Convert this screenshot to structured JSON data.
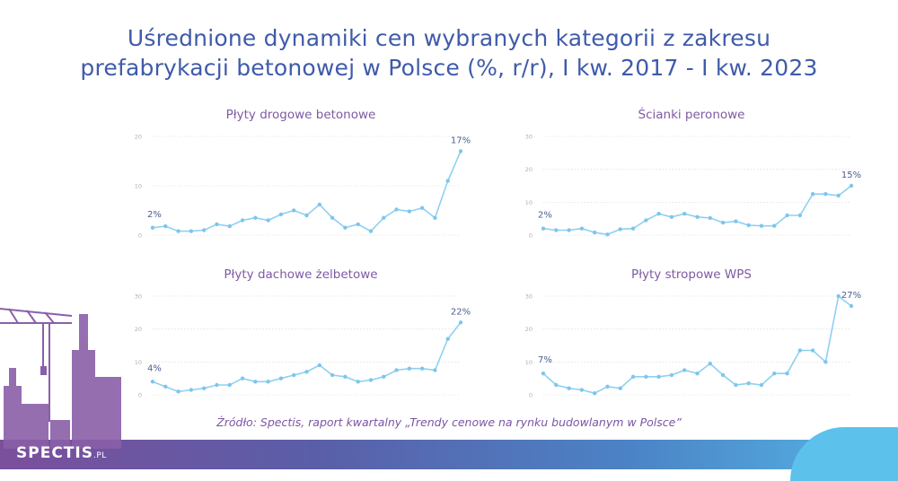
{
  "title": {
    "line1": "Uśrednione dynamiki cen wybranych kategorii z zakresu",
    "line2": "prefabrykacji betonowej w Polsce (%, r/r), I kw. 2017 - I kw. 2023"
  },
  "source": "Źródło: Spectis, raport kwartalny „Trendy cenowe na rynku budowlanym w Polsce”",
  "logo": {
    "main": "SPECTIS",
    "suffix": ".PL"
  },
  "colors": {
    "line": "#8fd0f0",
    "point": "#7cc6ee",
    "label": "#4a5e8f",
    "tick": "#b0b0b0",
    "grid": "#d6d6d6",
    "title": "#3f5ba9",
    "subtitle": "#7f5aa3"
  },
  "chart_data": [
    {
      "type": "line",
      "title": "Płyty drogowe betonowe",
      "ylim": [
        0,
        20
      ],
      "yticks": [
        "0",
        "10",
        "20"
      ],
      "values": [
        1.5,
        1.8,
        0.8,
        0.8,
        1.0,
        2.2,
        1.8,
        3.0,
        3.5,
        3.0,
        4.2,
        5.0,
        4.0,
        6.2,
        3.5,
        1.5,
        2.2,
        0.8,
        3.5,
        5.2,
        4.8,
        5.5,
        3.5,
        11.0,
        17.0
      ],
      "first_label": "2%",
      "last_label": "17%"
    },
    {
      "type": "line",
      "title": "Ścianki peronowe",
      "ylim": [
        0,
        30
      ],
      "yticks": [
        "0",
        "10",
        "20",
        "30"
      ],
      "values": [
        2.0,
        1.5,
        1.5,
        2.0,
        0.8,
        0.2,
        1.8,
        2.0,
        4.5,
        6.5,
        5.5,
        6.5,
        5.5,
        5.2,
        3.8,
        4.2,
        3.0,
        2.8,
        2.8,
        6.0,
        6.0,
        12.5,
        12.5,
        12.0,
        15.0
      ],
      "first_label": "2%",
      "last_label": "15%"
    },
    {
      "type": "line",
      "title": "Płyty dachowe żelbetowe",
      "ylim": [
        0,
        30
      ],
      "yticks": [
        "0",
        "10",
        "20",
        "30"
      ],
      "values": [
        4.0,
        2.5,
        1.0,
        1.5,
        2.0,
        3.0,
        3.0,
        5.0,
        4.0,
        4.0,
        5.0,
        6.0,
        7.0,
        9.0,
        6.0,
        5.5,
        4.0,
        4.5,
        5.5,
        7.5,
        8.0,
        8.0,
        7.5,
        17.0,
        22.0
      ],
      "first_label": "4%",
      "last_label": "22%"
    },
    {
      "type": "line",
      "title": "Płyty stropowe WPS",
      "ylim": [
        0,
        30
      ],
      "yticks": [
        "0",
        "10",
        "20",
        "30"
      ],
      "values": [
        6.5,
        3.0,
        2.0,
        1.5,
        0.5,
        2.5,
        2.0,
        5.5,
        5.5,
        5.5,
        6.0,
        7.5,
        6.5,
        9.5,
        6.0,
        3.0,
        3.5,
        3.0,
        6.5,
        6.5,
        13.5,
        13.5,
        10.0,
        30.0,
        27.0
      ],
      "first_label": "7%",
      "last_label": "27%"
    }
  ]
}
